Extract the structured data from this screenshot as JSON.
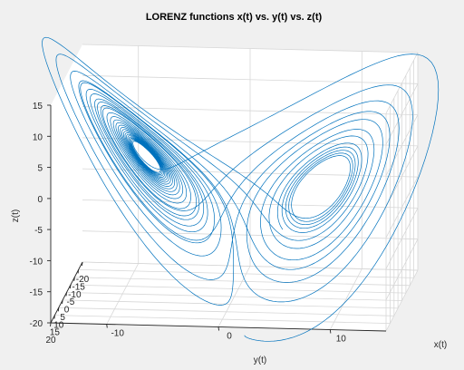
{
  "chart_data": {
    "type": "line-3d",
    "title": "LORENZ functions x(t) vs. y(t) vs. z(t)",
    "xlabel": "x(t)",
    "ylabel": "y(t)",
    "zlabel": "z(t)",
    "xlim": [
      -15,
      15
    ],
    "ylim": [
      -20,
      20
    ],
    "zlim": [
      -20,
      15
    ],
    "x_ticks": [
      "-10",
      "0",
      "10"
    ],
    "y_ticks": [
      "20",
      "15",
      "10",
      "5",
      "0",
      "-5",
      "-10",
      "-15",
      "-20"
    ],
    "z_ticks": [
      "15",
      "10",
      "5",
      "0",
      "-5",
      "-10",
      "-15",
      "-20"
    ],
    "grid": true,
    "series": [
      {
        "system": "lorenz",
        "sigma": 10,
        "rho": 28,
        "beta": 2.6667,
        "initial_state": [
          1,
          1,
          1
        ],
        "color": "#0072bd"
      }
    ]
  }
}
